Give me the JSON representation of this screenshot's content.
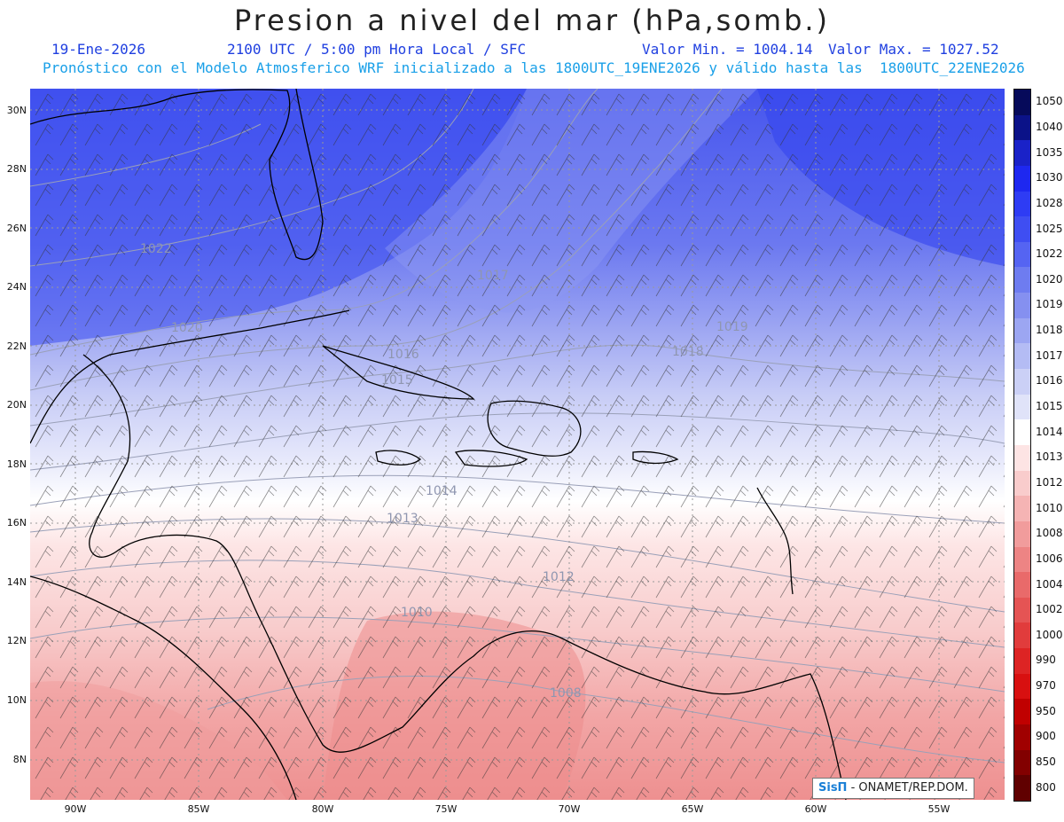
{
  "header": {
    "title": "Presion a nivel del mar (hPa,somb.)",
    "date": "19-Ene-2026",
    "time": "2100 UTC / 5:00 pm Hora Local / SFC",
    "min_label": "Valor Min. = 1004.14",
    "max_label": "Valor Max. = 1027.52",
    "forecast_info": "Pronóstico con el Modelo Atmosferico WRF inicializado a las 1800UTC_19ENE2026 y válido hasta las  1800UTC_22ENE2026"
  },
  "axes": {
    "lat_labels": [
      "30N",
      "28N",
      "26N",
      "24N",
      "22N",
      "20N",
      "18N",
      "16N",
      "14N",
      "12N",
      "10N",
      "8N"
    ],
    "lon_labels": [
      "90W",
      "85W",
      "80W",
      "75W",
      "70W",
      "65W",
      "60W",
      "55W"
    ]
  },
  "colorbar": {
    "labels": [
      "1050",
      "1040",
      "1035",
      "1030",
      "1028",
      "1025",
      "1022",
      "1020",
      "1019",
      "1018",
      "1017",
      "1016",
      "1015",
      "1014",
      "1013",
      "1012",
      "1010",
      "1008",
      "1006",
      "1004",
      "1002",
      "1000",
      "990",
      "970",
      "950",
      "900",
      "850",
      "800"
    ],
    "colors": [
      "#060a5a",
      "#0b1288",
      "#1a22c8",
      "#1e28f0",
      "#2e3cf4",
      "#3f4ef2",
      "#5564f2",
      "#6e7cf0",
      "#8590f0",
      "#9ca6f2",
      "#b4bcf4",
      "#cbd0f6",
      "#e0e3f9",
      "#ffffff",
      "#fde4e4",
      "#f9cccc",
      "#f5b4b4",
      "#f19c9c",
      "#ed8484",
      "#e96a6a",
      "#e55454",
      "#e13c3c",
      "#dd2424",
      "#d81010",
      "#c00000",
      "#a00000",
      "#820000",
      "#600000"
    ]
  },
  "contour_labels": [
    "1022",
    "1020",
    "1019",
    "1018",
    "1017",
    "1016",
    "1015",
    "1014",
    "1013",
    "1012",
    "1010",
    "1008"
  ],
  "credit": {
    "logo": "SisΠ",
    "text": "- ONAMET/REP.DOM."
  }
}
